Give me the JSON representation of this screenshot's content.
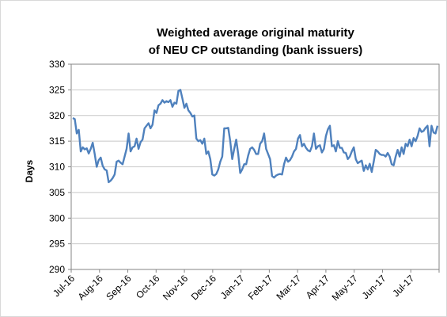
{
  "chart_data": {
    "type": "line",
    "title_line1": "Weighted average original maturity",
    "title_line2": "of NEU CP outstanding (bank issuers)",
    "xlabel": "",
    "ylabel": "Days",
    "ylim": [
      290,
      330
    ],
    "yticks": [
      290,
      295,
      300,
      305,
      310,
      315,
      320,
      325,
      330
    ],
    "grid": true,
    "legend": "none",
    "line_color": "#4f81bd",
    "xticks": [
      "Jul-16",
      "Aug-16",
      "Sep-16",
      "Oct-16",
      "Nov-16",
      "Dec-16",
      "Jan-17",
      "Feb-17",
      "Mar-17",
      "Apr-17",
      "May-17",
      "Jun-17",
      "Jul-17"
    ],
    "series": [
      {
        "values": [
          319.5,
          319.3,
          316.5,
          317.2,
          313.0,
          313.8,
          313.4,
          313.6,
          312.6,
          313.5,
          314.7,
          312.5,
          310.0,
          311.3,
          311.8,
          310.2,
          309.5,
          309.3,
          307.0,
          307.3,
          307.8,
          308.5,
          311.0,
          311.2,
          310.8,
          310.5,
          312.0,
          313.5,
          316.5,
          313.0,
          313.8,
          314.0,
          315.5,
          313.5,
          314.8,
          315.3,
          317.5,
          318.0,
          318.5,
          317.5,
          318.2,
          321.0,
          320.5,
          322.0,
          322.3,
          323.0,
          322.5,
          322.8,
          322.6,
          323.0,
          321.7,
          322.5,
          322.3,
          324.8,
          325.0,
          323.3,
          321.5,
          322.3,
          321.0,
          320.5,
          319.8,
          320.0,
          315.5,
          315.0,
          315.2,
          314.5,
          315.5,
          312.5,
          313.0,
          311.5,
          308.5,
          308.3,
          308.6,
          309.5,
          311.0,
          312.0,
          317.5,
          317.5,
          317.6,
          315.0,
          311.5,
          313.5,
          315.3,
          312.5,
          308.8,
          309.5,
          310.5,
          310.5,
          312.2,
          313.5,
          313.8,
          313.3,
          312.5,
          312.5,
          314.5,
          315.0,
          316.5,
          313.5,
          312.5,
          311.5,
          308.2,
          307.9,
          308.3,
          308.5,
          308.6,
          308.5,
          310.5,
          311.8,
          311.0,
          311.3,
          312.0,
          313.0,
          313.5,
          315.5,
          316.2,
          314.0,
          314.5,
          313.7,
          313.2,
          313.0,
          314.0,
          316.5,
          313.5,
          314.0,
          314.2,
          312.8,
          313.5,
          316.0,
          317.3,
          318.0,
          314.0,
          314.2,
          313.0,
          315.0,
          313.7,
          313.7,
          312.8,
          312.7,
          311.5,
          312.0,
          313.0,
          313.8,
          311.5,
          310.7,
          311.0,
          311.2,
          309.2,
          310.3,
          309.5,
          310.6,
          309.0,
          311.0,
          313.3,
          313.0,
          312.5,
          312.3,
          312.3,
          312.0,
          312.7,
          312.0,
          310.5,
          310.3,
          312.0,
          313.3,
          312.0,
          313.8,
          312.5,
          314.5,
          314.0,
          315.3,
          314.0,
          315.6,
          315.0,
          316.0,
          317.5,
          316.8,
          317.0,
          317.6,
          318.0,
          314.0,
          318.0,
          316.7,
          316.5,
          318.0
        ]
      }
    ]
  }
}
